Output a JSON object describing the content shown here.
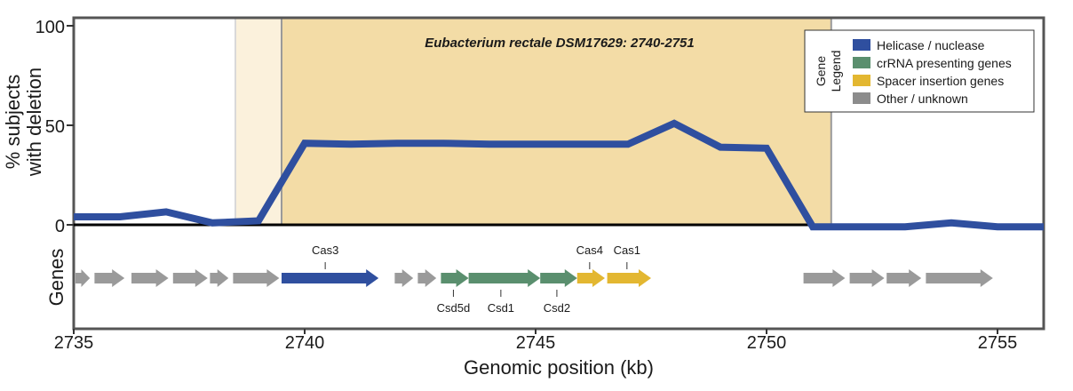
{
  "chart_data": {
    "type": "line",
    "title": "Eubacterium rectale DSM17629: 2740-2751",
    "xlabel": "Genomic position (kb)",
    "ylabel_line1": "% subjects",
    "ylabel_line2": "with deletion",
    "genes_label": "Genes",
    "xlim": [
      2735,
      2756
    ],
    "ylim": [
      0,
      100
    ],
    "x_ticks": [
      2735,
      2740,
      2745,
      2750,
      2755
    ],
    "y_ticks": [
      0,
      50,
      100
    ],
    "highlight_region": [
      2739.5,
      2751.4
    ],
    "faint_region": [
      2738.5,
      2739.5
    ],
    "series": [
      {
        "color": "#2f4f9f",
        "x": [
          2735,
          2736,
          2737,
          2738,
          2739,
          2740,
          2741,
          2742,
          2743,
          2744,
          2745,
          2746,
          2747,
          2748,
          2749,
          2750,
          2751,
          2752,
          2753,
          2754,
          2755,
          2756
        ],
        "values": [
          4,
          4,
          6.5,
          1,
          2,
          41,
          40.5,
          41,
          41,
          40.5,
          40.5,
          40.5,
          40.5,
          51,
          39,
          38.5,
          -1,
          -1,
          -1,
          1,
          -1,
          -1
        ]
      }
    ],
    "legend": {
      "title": "Gene Legend",
      "title_line1": "Gene",
      "title_line2": "Legend",
      "position": "top-right",
      "entries": [
        {
          "label": "Helicase / nuclease",
          "color": "#2f4f9f"
        },
        {
          "label": "crRNA presenting genes",
          "color": "#5a8f6e"
        },
        {
          "label": "Spacer insertion genes",
          "color": "#e3b731"
        },
        {
          "label": "Other / unknown",
          "color": "#8c8c8c"
        }
      ]
    },
    "genes": [
      {
        "start": 2735.0,
        "end": 2735.35,
        "category": "other"
      },
      {
        "start": 2735.45,
        "end": 2736.1,
        "category": "other"
      },
      {
        "start": 2736.25,
        "end": 2737.05,
        "category": "other"
      },
      {
        "start": 2737.15,
        "end": 2737.9,
        "category": "other"
      },
      {
        "start": 2737.95,
        "end": 2738.35,
        "category": "other"
      },
      {
        "start": 2738.45,
        "end": 2739.45,
        "category": "other"
      },
      {
        "start": 2739.5,
        "end": 2741.6,
        "category": "helicase",
        "label": "Cas3"
      },
      {
        "start": 2741.95,
        "end": 2742.35,
        "category": "other"
      },
      {
        "start": 2742.45,
        "end": 2742.85,
        "category": "other"
      },
      {
        "start": 2742.95,
        "end": 2743.55,
        "category": "crrna",
        "label": "Csd5d"
      },
      {
        "start": 2743.55,
        "end": 2745.1,
        "category": "crrna",
        "label": "Csd1"
      },
      {
        "start": 2745.1,
        "end": 2745.9,
        "category": "crrna",
        "label": "Csd2"
      },
      {
        "start": 2745.9,
        "end": 2746.5,
        "category": "spacer",
        "label": "Cas4"
      },
      {
        "start": 2746.55,
        "end": 2747.5,
        "category": "spacer",
        "label": "Cas1"
      },
      {
        "start": 2750.8,
        "end": 2751.7,
        "category": "other"
      },
      {
        "start": 2751.8,
        "end": 2752.55,
        "category": "other"
      },
      {
        "start": 2752.6,
        "end": 2753.35,
        "category": "other"
      },
      {
        "start": 2753.45,
        "end": 2754.9,
        "category": "other"
      }
    ],
    "category_colors": {
      "helicase": "#2f4f9f",
      "crrna": "#5a8f6e",
      "spacer": "#e3b731",
      "other": "#9a9a9a"
    },
    "highlight_color": "#f3dca6",
    "faint_color": "#fbf1dc"
  }
}
